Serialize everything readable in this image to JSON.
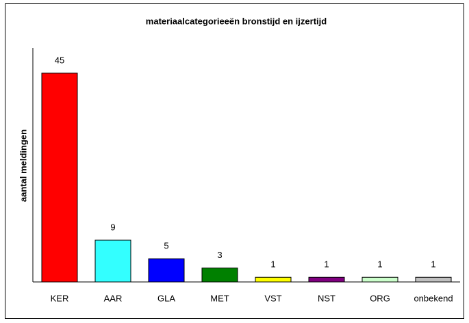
{
  "chart_data": {
    "type": "bar",
    "title": "materiaalcategorieeën bronstijd en ijzertijd",
    "y_label": "aantal meldingen",
    "categories": [
      "KER",
      "AAR",
      "GLA",
      "MET",
      "VST",
      "NST",
      "ORG",
      "onbekend"
    ],
    "values": [
      45,
      9,
      5,
      3,
      1,
      1,
      1,
      1
    ],
    "colors": [
      "#ff0000",
      "#33ffff",
      "#0000ff",
      "#008000",
      "#ffff00",
      "#800080",
      "#ccffcc",
      "#c0c0c0"
    ],
    "ylim": [
      0,
      50
    ]
  }
}
